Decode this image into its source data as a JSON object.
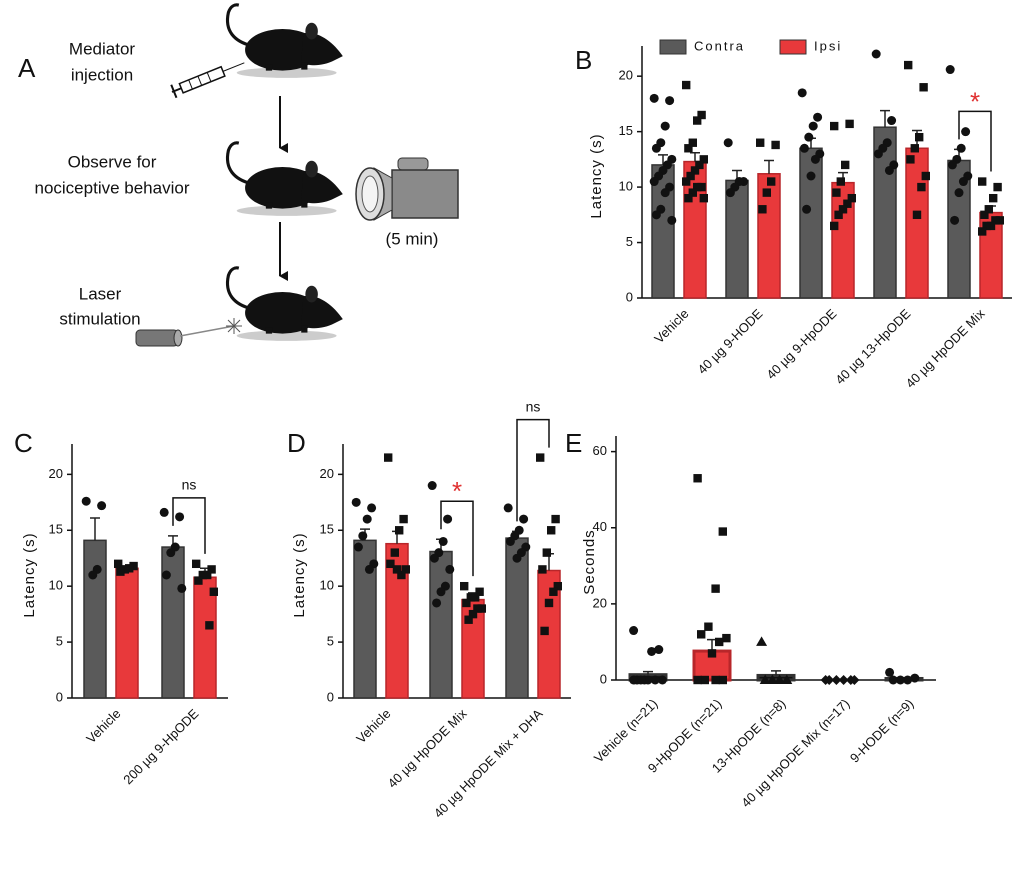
{
  "panel_a": {
    "label": "A",
    "steps": [
      [
        "Mediator",
        "injection"
      ],
      [
        "Observe for",
        "nociceptive behavior"
      ],
      [
        "Laser",
        "stimulation"
      ]
    ],
    "duration": "(5 min)"
  },
  "chart_data": [
    {
      "type": "bar",
      "panel_label": "B",
      "ylabel": "Latency (s)",
      "categories": [
        "Vehicle",
        "40 µg 9-HODE",
        "40 µg 9-HpODE",
        "40 µg 13-HpODE",
        "40 µg HpODE Mix"
      ],
      "series": [
        {
          "name": "Contra",
          "color": "#5a5a5a",
          "marker": "circle",
          "values": [
            12,
            10.6,
            13.5,
            15.4,
            12.4
          ],
          "errors": [
            0.9,
            0.9,
            0.9,
            1.5,
            1.0
          ],
          "points": [
            [
              18,
              17.8,
              15.5,
              14,
              13.5,
              12.5,
              12,
              11.5,
              11,
              10.5,
              10,
              9.5,
              8,
              7.5,
              7
            ],
            [
              14,
              10.5,
              10.5,
              10,
              9.5
            ],
            [
              18.5,
              16.3,
              15.5,
              14.5,
              13.5,
              13,
              12.5,
              11,
              8
            ],
            [
              22,
              16,
              14,
              13.5,
              13,
              12,
              11.5
            ],
            [
              20.6,
              15,
              13.5,
              12.5,
              12,
              11,
              10.5,
              9.5,
              7
            ]
          ]
        },
        {
          "name": "Ipsi",
          "color": "#e8393b",
          "marker": "square",
          "values": [
            12.3,
            11.2,
            10.4,
            13.5,
            7.7
          ],
          "errors": [
            0.8,
            1.2,
            0.9,
            1.6,
            0.6
          ],
          "points": [
            [
              19.2,
              16.5,
              16,
              14,
              13.5,
              12.5,
              12,
              11.5,
              11,
              10.5,
              10,
              10,
              9.5,
              9,
              9
            ],
            [
              14,
              13.8,
              10.5,
              9.5,
              8
            ],
            [
              15.5,
              15.7,
              12,
              10.5,
              9.5,
              9,
              8.5,
              8,
              7.5,
              6.5
            ],
            [
              21,
              19,
              14.5,
              13.5,
              12.5,
              11,
              10,
              7.5
            ],
            [
              10.5,
              10,
              9,
              8,
              7.5,
              7,
              7,
              6.5,
              6.5,
              6
            ]
          ]
        }
      ],
      "ylim": [
        0,
        22
      ],
      "yticks": [
        0,
        5,
        10,
        15,
        20
      ],
      "legend": "top",
      "annotations": [
        {
          "text": "*",
          "category": 4,
          "color": "#e03030"
        }
      ]
    },
    {
      "type": "bar",
      "panel_label": "C",
      "ylabel": "Latency (s)",
      "categories": [
        "Vehicle",
        "200 µg 9-HpODE"
      ],
      "series": [
        {
          "color": "#5a5a5a",
          "marker": "circle",
          "values": [
            14.1,
            13.5
          ],
          "errors": [
            2.0,
            1.0
          ],
          "points": [
            [
              17.6,
              17.2,
              11.5,
              11
            ],
            [
              16.6,
              16.2,
              13.5,
              13,
              11,
              9.8
            ]
          ]
        },
        {
          "color": "#e8393b",
          "marker": "square",
          "values": [
            11.6,
            10.8
          ],
          "errors": [
            0.2,
            0.8
          ],
          "points": [
            [
              12,
              11.8,
              11.6,
              11.5,
              11.3
            ],
            [
              12,
              11.5,
              11,
              11,
              10.5,
              9.5,
              6.5
            ]
          ]
        }
      ],
      "ylim": [
        0,
        22
      ],
      "yticks": [
        0,
        5,
        10,
        15,
        20
      ],
      "annotations": [
        {
          "text": "ns",
          "category": 1,
          "color": "#111111"
        }
      ]
    },
    {
      "type": "bar",
      "panel_label": "D",
      "ylabel": "Latency (s)",
      "categories": [
        "Vehicle",
        "40 µg HpODE Mix",
        "40 µg HpODE Mix + DHA"
      ],
      "series": [
        {
          "color": "#5a5a5a",
          "marker": "circle",
          "values": [
            14.1,
            13.1,
            14.3
          ],
          "errors": [
            1.0,
            1.1,
            0.6
          ],
          "points": [
            [
              17.5,
              17,
              16,
              14.5,
              13.5,
              12,
              11.5
            ],
            [
              19,
              16,
              14,
              13,
              12.5,
              11.5,
              10,
              9.5,
              8.5
            ],
            [
              17,
              16,
              15,
              14.5,
              14,
              13.5,
              13,
              12.5
            ]
          ]
        },
        {
          "color": "#e8393b",
          "marker": "square",
          "values": [
            13.8,
            8.8,
            11.4
          ],
          "errors": [
            1.1,
            0.6,
            1.5
          ],
          "points": [
            [
              21.5,
              16,
              15,
              13,
              12,
              11.5,
              11,
              11.5
            ],
            [
              10,
              9.5,
              9,
              9,
              8.5,
              8,
              8,
              7.5,
              7
            ],
            [
              21.5,
              16,
              15,
              13,
              11.5,
              10,
              9.5,
              8.5,
              6
            ]
          ]
        }
      ],
      "ylim": [
        0,
        22
      ],
      "yticks": [
        0,
        5,
        10,
        15,
        20
      ],
      "annotations": [
        {
          "text": "*",
          "category": 1,
          "color": "#e03030"
        },
        {
          "text": "ns",
          "category": 2,
          "color": "#111111"
        }
      ]
    },
    {
      "type": "bar",
      "panel_label": "E",
      "ylabel": "Seconds",
      "categories": [
        "Vehicle (n=21)",
        "9-HpODE (n=21)",
        "13-HpODE (n=8)",
        "40 µg HpODE Mix (n=17)",
        "9-HODE (n=9)"
      ],
      "values": [
        1.4,
        7.6,
        1.2,
        0,
        0.4
      ],
      "errors": [
        0.8,
        3.0,
        1.2,
        0,
        0.2
      ],
      "colors": [
        "#111111",
        "#e8393b",
        "#111111",
        "#111111",
        "#111111"
      ],
      "markers": [
        "circle",
        "square",
        "triangle",
        "diamond",
        "circle"
      ],
      "points": [
        [
          13,
          8,
          7.5,
          0,
          0,
          0,
          0,
          0,
          0,
          0
        ],
        [
          53,
          39,
          24,
          14,
          12,
          11,
          10,
          7,
          0,
          0,
          0,
          0
        ],
        [
          10,
          0,
          0,
          0,
          0
        ],
        [
          0,
          0,
          0,
          0,
          0,
          0
        ],
        [
          2,
          0.5,
          0,
          0,
          0
        ]
      ],
      "ylim": [
        0,
        62
      ],
      "yticks": [
        0,
        20,
        40,
        60
      ]
    }
  ]
}
